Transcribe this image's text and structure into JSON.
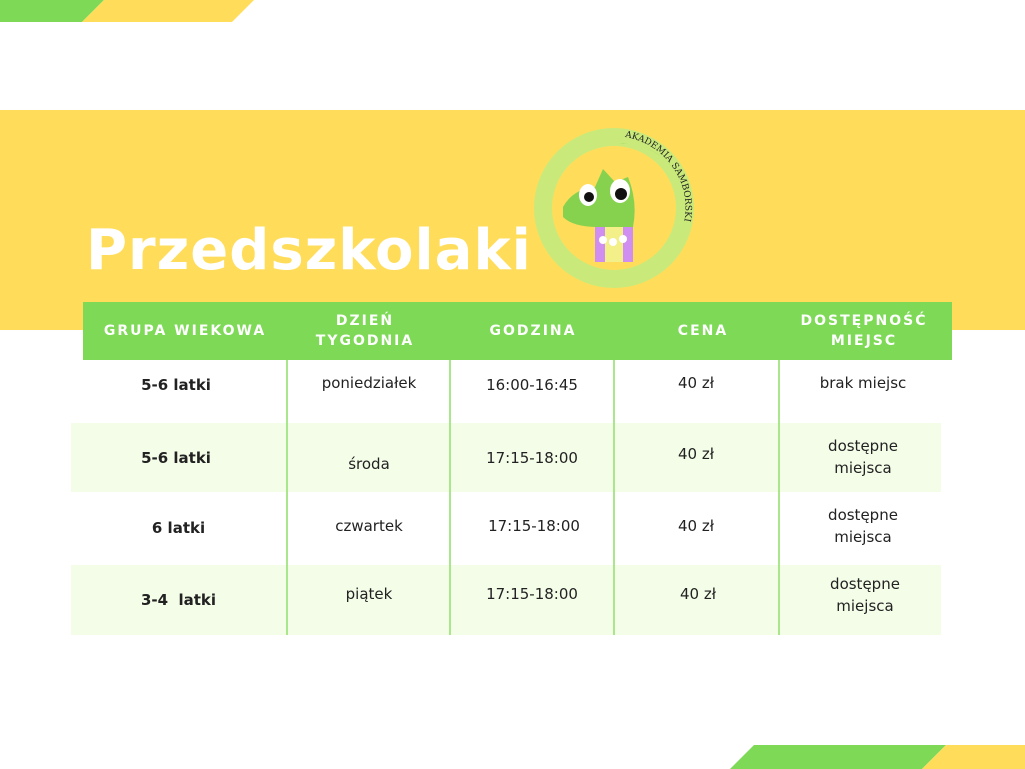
{
  "title": "Przedszkolaki",
  "logo": {
    "text": "AKADEMIA SAMBORSKI",
    "icon": "crocodile-mascot-logo"
  },
  "colors": {
    "green": "#7ed957",
    "yellow": "#ffdd5a",
    "row_tint": "#f4fde8"
  },
  "table": {
    "headers": [
      "GRUPA WIEKOWA",
      "DZIEŃ TYGODNIA",
      "GODZINA",
      "CENA",
      "DOSTĘPNOŚĆ MIEJSC"
    ],
    "rows": [
      {
        "group": "5-6 latki",
        "day": "poniedziałek",
        "time": "16:00-16:45",
        "price": "40 zł",
        "availability": "brak miejsc"
      },
      {
        "group": "5-6 latki",
        "day": "środa",
        "time": "17:15-18:00",
        "price": "40 zł",
        "availability": "dostępne miejsca"
      },
      {
        "group": "6 latki",
        "day": "czwartek",
        "time": "17:15-18:00",
        "price": "40 zł",
        "availability": "dostępne miejsca"
      },
      {
        "group": "3-4  latki",
        "day": "piątek",
        "time": "17:15-18:00",
        "price": "40 zł",
        "availability": "dostępne miejsca"
      }
    ]
  }
}
